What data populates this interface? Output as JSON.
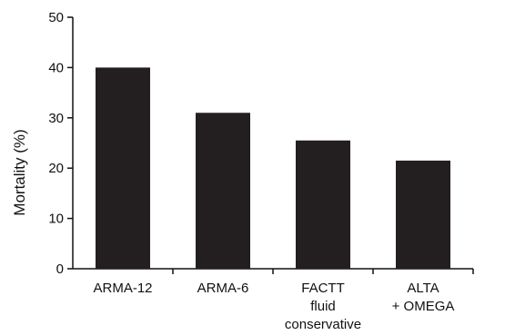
{
  "chart_data": {
    "type": "bar",
    "categories": [
      [
        "ARMA-12"
      ],
      [
        "ARMA-6"
      ],
      [
        "FACTT",
        "fluid",
        "conservative"
      ],
      [
        "ALTA",
        "+ OMEGA"
      ]
    ],
    "values": [
      40,
      31,
      25.5,
      21.5
    ],
    "ylabel": "Mortality (%)",
    "xlabel": "",
    "title": "",
    "ylim": [
      0,
      50
    ],
    "yticks": [
      "0",
      "10",
      "20",
      "30",
      "40",
      "50"
    ],
    "grid": false,
    "bar_color": "#231f20"
  }
}
